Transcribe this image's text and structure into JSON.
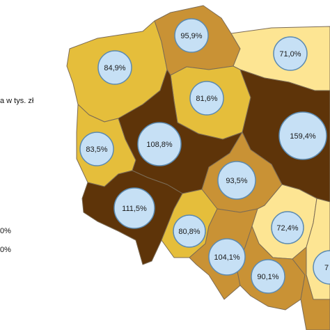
{
  "legend": {
    "title_fragment": "a w tys. zł",
    "range_1": "0%",
    "range_2": "0%"
  },
  "colors": {
    "dark_brown": "#5e3409",
    "medium_brown": "#c99235",
    "gold": "#e5be3b",
    "pale_yellow": "#fde593",
    "bubble_fill": "#c6e0f5",
    "bubble_stroke": "#5b8ab1",
    "border": "#7b6b55"
  },
  "regions": [
    {
      "id": "zachodniopomorskie",
      "value_label": "84,9%",
      "tier": "gold"
    },
    {
      "id": "pomorskie",
      "value_label": "95,9%",
      "tier": "medium_brown"
    },
    {
      "id": "warminsko-mazurskie",
      "value_label": "71,0%",
      "tier": "pale_yellow"
    },
    {
      "id": "kujawsko-pomorskie",
      "value_label": "81,6%",
      "tier": "gold"
    },
    {
      "id": "lubuskie",
      "value_label": "83,5%",
      "tier": "gold"
    },
    {
      "id": "wielkopolskie",
      "value_label": "108,8%",
      "tier": "dark_brown"
    },
    {
      "id": "mazowieckie",
      "value_label": "159,4%",
      "tier": "dark_brown"
    },
    {
      "id": "lodzkie",
      "value_label": "93,5%",
      "tier": "medium_brown"
    },
    {
      "id": "dolnoslaskie",
      "value_label": "111,5%",
      "tier": "dark_brown"
    },
    {
      "id": "opolskie",
      "value_label": "80,8%",
      "tier": "gold"
    },
    {
      "id": "swietokrzyskie",
      "value_label": "72,4%",
      "tier": "pale_yellow"
    },
    {
      "id": "slaskie",
      "value_label": "104,1%",
      "tier": "medium_brown"
    },
    {
      "id": "malopolskie",
      "value_label": "90,1%",
      "tier": "medium_brown"
    },
    {
      "id": "lubelskie",
      "value_label": "7",
      "tier": "pale_yellow"
    },
    {
      "id": "podkarpackie",
      "value_label": "",
      "tier": "medium_brown"
    }
  ]
}
